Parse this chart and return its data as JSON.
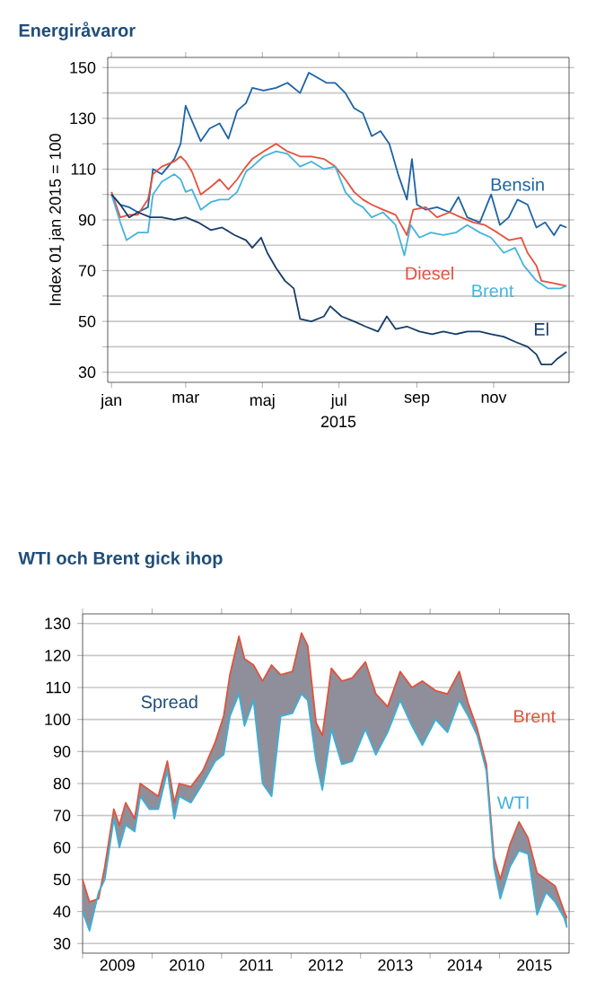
{
  "chart_data": [
    {
      "type": "line",
      "title": "Energiråvaror",
      "xlabel": "2015",
      "ylabel": "Index 01 jan 2015 = 100",
      "xlim": [
        "2014-12-29",
        "2015-12-31"
      ],
      "ylim": [
        26,
        154
      ],
      "xticks": [
        {
          "value": "2015-01-01",
          "label": "jan"
        },
        {
          "value": "2015-03-01",
          "label": "mar"
        },
        {
          "value": "2015-05-01",
          "label": "maj"
        },
        {
          "value": "2015-07-01",
          "label": "jul"
        },
        {
          "value": "2015-09-01",
          "label": "sep"
        },
        {
          "value": "2015-11-01",
          "label": "nov"
        }
      ],
      "yticks": [
        30,
        {
          "value": 40,
          "label": null
        },
        50,
        {
          "value": 60,
          "label": null
        },
        70,
        {
          "value": 80,
          "label": null
        },
        90,
        {
          "value": 100,
          "label": null
        },
        110,
        {
          "value": 120,
          "label": null
        },
        130,
        {
          "value": 140,
          "label": null
        },
        150
      ],
      "grid": "y",
      "legend": false,
      "series": [
        {
          "name": "Bensin",
          "color": "#1d63a6",
          "x": [
            "2015-01-01",
            "2015-01-08",
            "2015-01-15",
            "2015-01-22",
            "2015-01-30",
            "2015-02-03",
            "2015-02-10",
            "2015-02-20",
            "2015-02-25",
            "2015-03-01",
            "2015-03-06",
            "2015-03-13",
            "2015-03-20",
            "2015-03-28",
            "2015-04-04",
            "2015-04-11",
            "2015-04-18",
            "2015-04-23",
            "2015-05-02",
            "2015-05-12",
            "2015-05-21",
            "2015-05-31",
            "2015-06-07",
            "2015-06-14",
            "2015-06-21",
            "2015-06-28",
            "2015-07-06",
            "2015-07-13",
            "2015-07-20",
            "2015-07-27",
            "2015-08-03",
            "2015-08-10",
            "2015-08-17",
            "2015-08-24",
            "2015-08-28",
            "2015-09-01",
            "2015-09-08",
            "2015-09-17",
            "2015-09-27",
            "2015-10-04",
            "2015-10-11",
            "2015-10-21",
            "2015-10-30",
            "2015-11-06",
            "2015-11-13",
            "2015-11-20",
            "2015-11-28",
            "2015-12-05",
            "2015-12-12",
            "2015-12-19",
            "2015-12-24",
            "2015-12-29"
          ],
          "values": [
            100,
            96,
            95,
            93,
            95,
            110,
            108,
            114,
            120,
            135,
            129,
            121,
            126,
            128,
            122,
            133,
            136,
            142,
            141,
            142,
            144,
            140,
            148,
            146,
            144,
            144,
            140,
            134,
            132,
            123,
            125,
            120,
            108,
            98,
            114,
            96,
            94,
            95,
            93,
            99,
            91,
            89,
            100,
            88,
            91,
            98,
            96,
            87,
            89,
            84,
            88,
            87
          ]
        },
        {
          "name": "Diesel",
          "color": "#e5503c",
          "x": [
            "2015-01-01",
            "2015-01-08",
            "2015-01-15",
            "2015-01-22",
            "2015-01-30",
            "2015-02-03",
            "2015-02-10",
            "2015-02-20",
            "2015-02-25",
            "2015-03-01",
            "2015-03-06",
            "2015-03-13",
            "2015-03-21",
            "2015-03-28",
            "2015-04-04",
            "2015-04-11",
            "2015-04-18",
            "2015-04-23",
            "2015-05-02",
            "2015-05-12",
            "2015-05-21",
            "2015-05-31",
            "2015-06-09",
            "2015-06-19",
            "2015-06-28",
            "2015-07-06",
            "2015-07-13",
            "2015-07-20",
            "2015-07-27",
            "2015-08-05",
            "2015-08-15",
            "2015-08-24",
            "2015-08-29",
            "2015-09-08",
            "2015-09-17",
            "2015-09-27",
            "2015-10-06",
            "2015-10-16",
            "2015-10-25",
            "2015-11-04",
            "2015-11-13",
            "2015-11-23",
            "2015-11-28",
            "2015-12-05",
            "2015-12-09",
            "2015-12-19",
            "2015-12-29"
          ],
          "values": [
            101,
            91,
            92,
            92,
            98,
            108,
            111,
            113,
            115,
            113,
            109,
            100,
            103,
            106,
            102,
            106,
            111,
            114,
            117,
            120,
            117,
            115,
            115,
            114,
            111,
            106,
            101,
            98,
            96,
            94,
            92,
            84,
            94,
            95,
            91,
            93,
            91,
            89,
            88,
            85,
            82,
            83,
            77,
            72,
            66,
            65,
            64
          ]
        },
        {
          "name": "Brent",
          "color": "#45b3dc",
          "x": [
            "2015-01-01",
            "2015-01-08",
            "2015-01-13",
            "2015-01-22",
            "2015-01-30",
            "2015-02-03",
            "2015-02-10",
            "2015-02-20",
            "2015-02-25",
            "2015-03-01",
            "2015-03-06",
            "2015-03-13",
            "2015-03-21",
            "2015-03-28",
            "2015-04-04",
            "2015-04-11",
            "2015-04-18",
            "2015-04-23",
            "2015-05-02",
            "2015-05-12",
            "2015-05-21",
            "2015-05-31",
            "2015-06-09",
            "2015-06-19",
            "2015-06-28",
            "2015-07-06",
            "2015-07-13",
            "2015-07-20",
            "2015-07-27",
            "2015-08-05",
            "2015-08-15",
            "2015-08-22",
            "2015-08-27",
            "2015-09-03",
            "2015-09-12",
            "2015-09-22",
            "2015-10-02",
            "2015-10-11",
            "2015-10-21",
            "2015-10-30",
            "2015-11-09",
            "2015-11-18",
            "2015-11-25",
            "2015-12-05",
            "2015-12-14",
            "2015-12-24",
            "2015-12-29"
          ],
          "values": [
            100,
            89,
            82,
            85,
            85,
            100,
            105,
            108,
            106,
            101,
            102,
            94,
            97,
            98,
            98,
            101,
            109,
            111,
            115,
            117,
            116,
            111,
            113,
            110,
            111,
            101,
            97,
            95,
            91,
            93,
            88,
            76,
            88,
            83,
            85,
            84,
            85,
            88,
            85,
            83,
            77,
            79,
            72,
            66,
            63,
            63,
            64
          ]
        },
        {
          "name": "El",
          "color": "#163d69",
          "x": [
            "2015-01-01",
            "2015-01-08",
            "2015-01-15",
            "2015-01-22",
            "2015-02-01",
            "2015-02-10",
            "2015-02-20",
            "2015-03-01",
            "2015-03-11",
            "2015-03-21",
            "2015-03-30",
            "2015-04-09",
            "2015-04-18",
            "2015-04-23",
            "2015-04-30",
            "2015-05-05",
            "2015-05-12",
            "2015-05-19",
            "2015-05-26",
            "2015-05-31",
            "2015-06-09",
            "2015-06-19",
            "2015-06-24",
            "2015-07-03",
            "2015-07-13",
            "2015-07-22",
            "2015-08-01",
            "2015-08-08",
            "2015-08-15",
            "2015-08-24",
            "2015-09-03",
            "2015-09-13",
            "2015-09-22",
            "2015-10-02",
            "2015-10-11",
            "2015-10-21",
            "2015-10-30",
            "2015-11-09",
            "2015-11-18",
            "2015-11-28",
            "2015-12-05",
            "2015-12-09",
            "2015-12-17",
            "2015-12-21",
            "2015-12-29"
          ],
          "values": [
            100,
            96,
            91,
            93,
            91,
            91,
            90,
            91,
            89,
            86,
            87,
            84,
            82,
            79,
            83,
            77,
            71,
            66,
            63,
            51,
            50,
            52,
            56,
            52,
            50,
            48,
            46,
            52,
            47,
            48,
            46,
            45,
            46,
            45,
            46,
            46,
            45,
            44,
            42,
            40,
            37,
            33,
            33,
            35,
            38
          ]
        }
      ]
    },
    {
      "type": "line",
      "title": "WTI och Brent gick ihop",
      "xlim": [
        2009,
        2016
      ],
      "ylim": [
        27,
        133
      ],
      "xticks": [
        {
          "value": 2009,
          "label": null
        },
        {
          "value": 2010,
          "label": null
        },
        {
          "value": 2011,
          "label": null
        },
        {
          "value": 2012,
          "label": null
        },
        {
          "value": 2013,
          "label": null
        },
        {
          "value": 2014,
          "label": null
        },
        {
          "value": 2015,
          "label": null
        },
        {
          "value": 2009.5,
          "label": "2009"
        },
        {
          "value": 2010.5,
          "label": "2010"
        },
        {
          "value": 2011.5,
          "label": "2011"
        },
        {
          "value": 2012.5,
          "label": "2012"
        },
        {
          "value": 2013.5,
          "label": "2013"
        },
        {
          "value": 2014.5,
          "label": "2014"
        },
        {
          "value": 2015.5,
          "label": "2015"
        }
      ],
      "yticks": [
        30,
        40,
        50,
        60,
        70,
        80,
        90,
        100,
        110,
        120,
        130
      ],
      "grid": "y",
      "legend": false,
      "annotations": [
        "Spread"
      ],
      "x": [
        2009.0,
        2009.1,
        2009.23,
        2009.32,
        2009.45,
        2009.53,
        2009.62,
        2009.75,
        2009.83,
        2009.96,
        2010.09,
        2010.22,
        2010.32,
        2010.39,
        2010.56,
        2010.73,
        2010.91,
        2011.03,
        2011.12,
        2011.25,
        2011.33,
        2011.46,
        2011.59,
        2011.72,
        2011.85,
        2012.02,
        2012.15,
        2012.24,
        2012.36,
        2012.45,
        2012.58,
        2012.73,
        2012.88,
        2013.07,
        2013.22,
        2013.39,
        2013.57,
        2013.74,
        2013.89,
        2014.08,
        2014.25,
        2014.42,
        2014.55,
        2014.68,
        2014.81,
        2014.92,
        2015.01,
        2015.15,
        2015.28,
        2015.41,
        2015.54,
        2015.67,
        2015.8,
        2015.93,
        2015.97
      ],
      "series": [
        {
          "name": "Brent",
          "color": "#e0533c",
          "lower": [
            40,
            34,
            46,
            50,
            69,
            60,
            67,
            65,
            76,
            72,
            72,
            84,
            69,
            76,
            74,
            80,
            87,
            89,
            101,
            108,
            98,
            106,
            80,
            76,
            101,
            102,
            108,
            106,
            87,
            78,
            97,
            86,
            87,
            97,
            89,
            96,
            106,
            98,
            92,
            100,
            96,
            106,
            101,
            95,
            84,
            54,
            44,
            54,
            59,
            58,
            39,
            46,
            43,
            38,
            35
          ],
          "values": [
            50,
            43,
            44,
            54,
            72,
            67,
            74,
            69,
            80,
            78,
            76,
            87,
            74,
            80,
            79,
            84,
            93,
            101,
            114,
            126,
            119,
            117,
            112,
            117,
            114,
            115,
            127,
            123,
            99,
            95,
            116,
            112,
            113,
            118,
            108,
            104,
            115,
            110,
            112,
            109,
            108,
            115,
            105,
            97,
            86,
            57,
            50,
            61,
            68,
            63,
            52,
            50,
            48,
            40,
            38
          ],
          "upper": [
            50,
            43,
            44,
            54,
            72,
            67,
            74,
            69,
            80,
            78,
            76,
            87,
            74,
            80,
            79,
            84,
            93,
            101,
            114,
            126,
            119,
            117,
            112,
            117,
            114,
            115,
            127,
            123,
            99,
            95,
            116,
            112,
            113,
            118,
            108,
            104,
            115,
            110,
            112,
            109,
            108,
            115,
            105,
            97,
            86,
            57,
            50,
            61,
            68,
            63,
            52,
            50,
            48,
            40,
            38
          ]
        },
        {
          "name": "WTI",
          "color": "#3ab0d8",
          "values": [
            40,
            34,
            46,
            50,
            69,
            60,
            67,
            65,
            76,
            72,
            72,
            84,
            69,
            76,
            74,
            80,
            87,
            89,
            101,
            108,
            98,
            106,
            80,
            76,
            101,
            102,
            108,
            106,
            87,
            78,
            97,
            86,
            87,
            97,
            89,
            96,
            106,
            98,
            92,
            100,
            96,
            106,
            101,
            95,
            84,
            54,
            44,
            54,
            59,
            58,
            39,
            46,
            43,
            38,
            35
          ]
        }
      ]
    }
  ]
}
